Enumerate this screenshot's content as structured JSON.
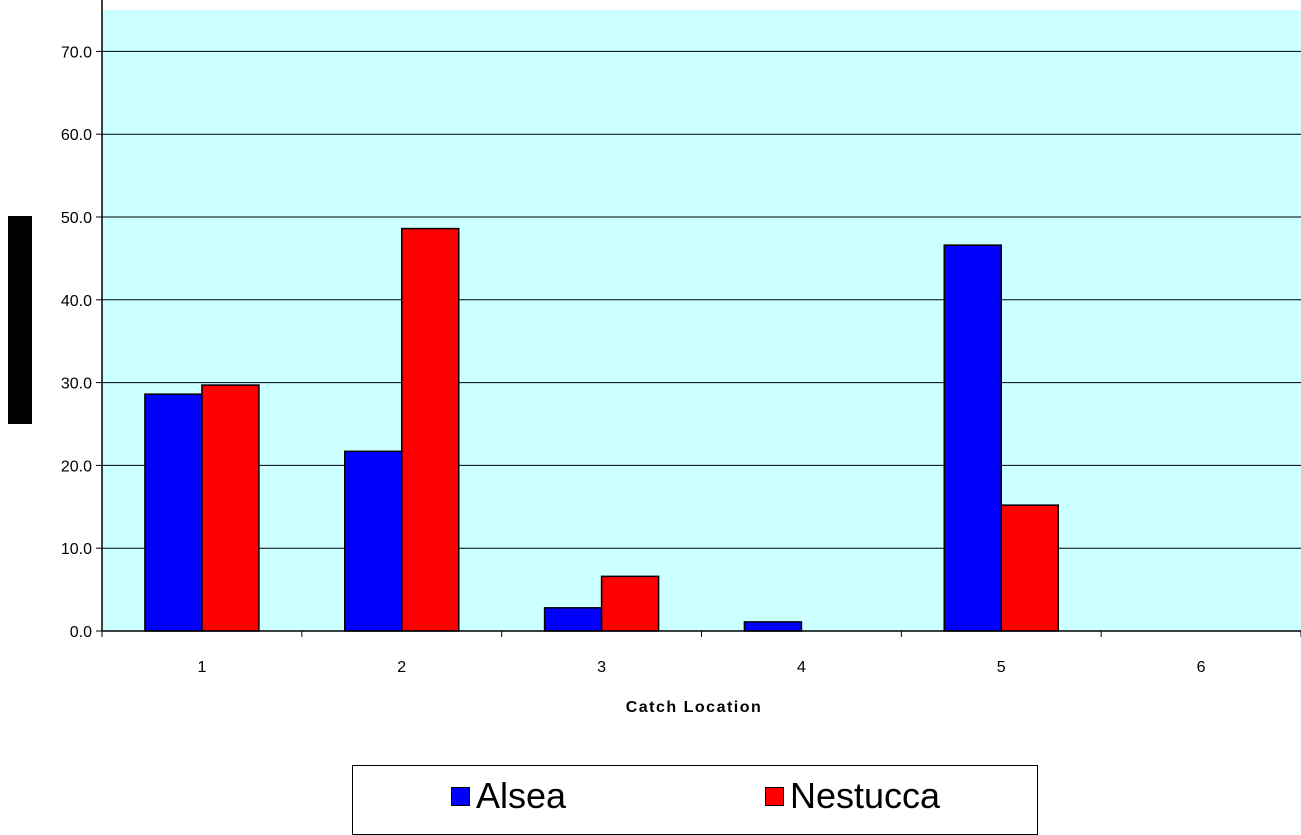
{
  "colors": {
    "plot_background": "#CCFFFF",
    "gridline": "#000000",
    "alsea": "#0000FF",
    "nestucca": "#FF0000",
    "bar_outline": "#000000"
  },
  "chart_data": {
    "type": "bar",
    "title": "",
    "xlabel": "Catch Location",
    "ylabel": "",
    "categories": [
      "1",
      "2",
      "3",
      "4",
      "5",
      "6"
    ],
    "ylim": [
      0,
      75
    ],
    "yticks": [
      0,
      10,
      20,
      30,
      40,
      50,
      60,
      70
    ],
    "ytick_labels": [
      "0.0",
      "10.0",
      "20.0",
      "30.0",
      "40.0",
      "50.0",
      "60.0",
      "70.0"
    ],
    "grid": true,
    "legend_position": "bottom",
    "series": [
      {
        "name": "Alsea",
        "color": "#0000FF",
        "values": [
          28.6,
          21.7,
          2.8,
          1.1,
          46.6,
          0
        ]
      },
      {
        "name": "Nestucca",
        "color": "#FF0000",
        "values": [
          29.7,
          48.6,
          6.6,
          0,
          15.2,
          0
        ]
      }
    ]
  },
  "legend": {
    "items": [
      {
        "label": "Alsea"
      },
      {
        "label": "Nestucca"
      }
    ]
  }
}
